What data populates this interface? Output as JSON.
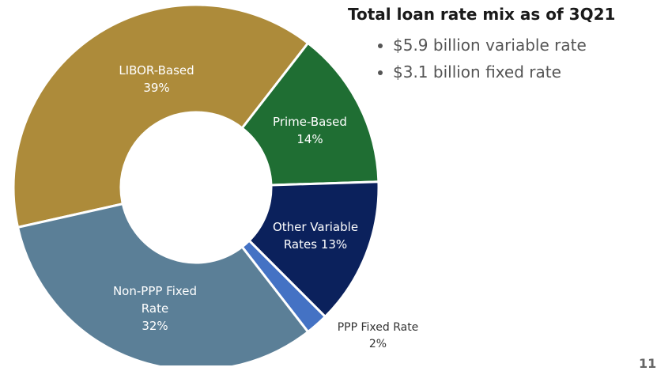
{
  "chart_data": {
    "type": "donut",
    "title": "Total loan rate mix as of 3Q21",
    "bullets": [
      "$5.9 billion variable rate",
      "$3.1 billion fixed rate"
    ],
    "categories": [
      "LIBOR-Based",
      "Prime-Based",
      "Other Variable Rates",
      "PPP Fixed Rate",
      "Non-PPP Fixed Rate"
    ],
    "values": [
      39,
      14,
      13,
      2,
      32
    ],
    "value_labels": [
      "39%",
      "14%",
      "13%",
      "2%",
      "32%"
    ],
    "colors": [
      "#ad8b3a",
      "#1f6e33",
      "#0b215c",
      "#4472c4",
      "#5b7f97"
    ],
    "page_number": "11"
  }
}
